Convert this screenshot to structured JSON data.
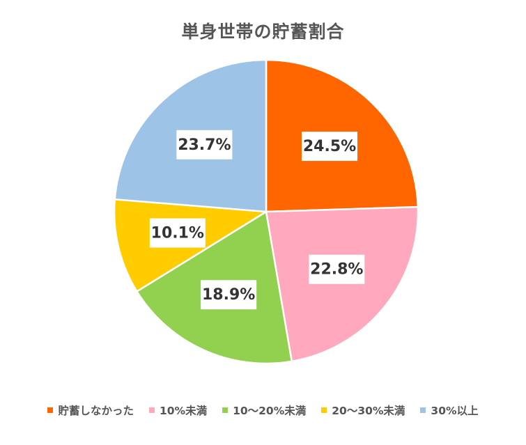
{
  "chart_data": {
    "type": "pie",
    "title": "単身世帯の貯蓄割合",
    "categories": [
      "貯蓄しなかった",
      "10%未満",
      "10〜20%未満",
      "20〜30%未満",
      "30%以上"
    ],
    "values": [
      24.5,
      22.8,
      18.9,
      10.1,
      23.7
    ],
    "value_labels": [
      "24.5%",
      "22.8%",
      "18.9%",
      "10.1%",
      "23.7%"
    ],
    "colors": [
      "#FF6600",
      "#FFA8BE",
      "#92D050",
      "#FFCC00",
      "#9DC3E6"
    ],
    "start_angle": "12 o'clock",
    "direction": "clockwise",
    "legend_position": "bottom"
  }
}
